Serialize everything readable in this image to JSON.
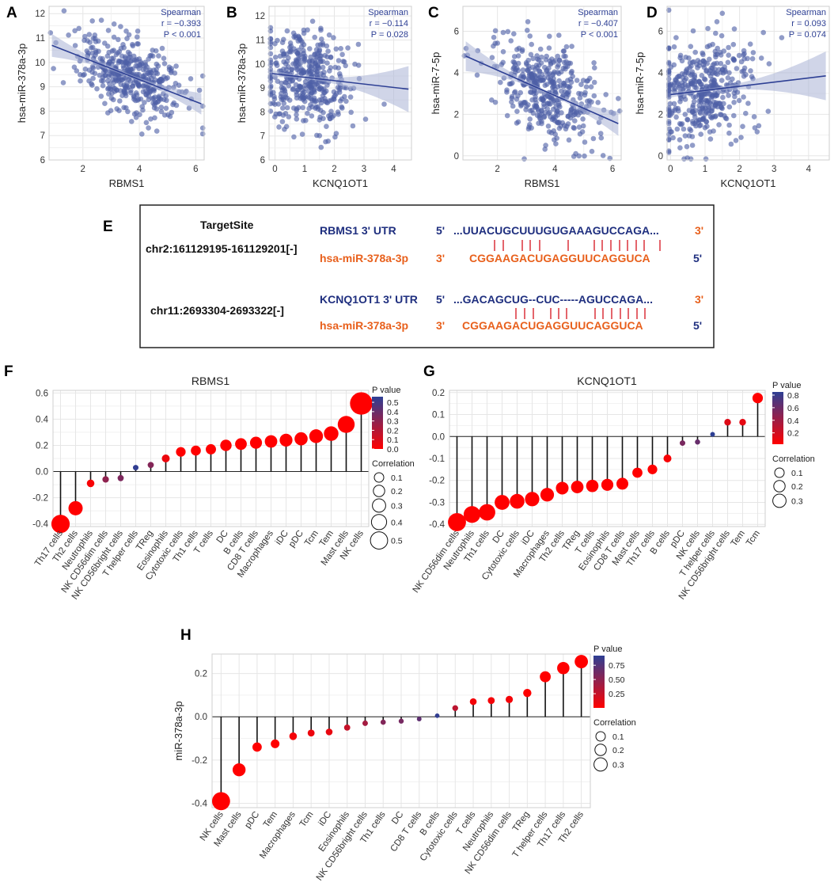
{
  "colors": {
    "scatter_point": "#4d5fa6",
    "reg_line": "#2d3f94",
    "ci_band": "#a9b3d6",
    "stat_text": "#2d3f94",
    "grid": "#e6e6e6",
    "utr_blue": "#1f2f7f",
    "mirna_orange": "#e8601c",
    "match_red": "#d9232d",
    "p_high": "#2d3f94",
    "p_low": "#ff0000"
  },
  "labels": {
    "panel_letters": [
      "A",
      "B",
      "C",
      "D",
      "E",
      "F",
      "G",
      "H"
    ],
    "spearman": "Spearman",
    "p_value_title": "P value",
    "correlation_title": "Correlation"
  },
  "chart_data": [
    {
      "id": "A",
      "type": "scatter",
      "xlabel": "RBMS1",
      "ylabel": "hsa-miR-378a-3p",
      "xlim": [
        0.8,
        6.3
      ],
      "ylim": [
        6,
        12.3
      ],
      "xticks": [
        2,
        4,
        6
      ],
      "yticks": [
        6,
        7,
        8,
        9,
        10,
        11,
        12
      ],
      "stats": {
        "method": "Spearman",
        "r": "r = −0.393",
        "p": "P < 0.001"
      },
      "regression": {
        "x": [
          0.9,
          6.2
        ],
        "y": [
          10.7,
          8.3
        ]
      },
      "n_points": 420,
      "x_center": 3.6,
      "x_sd": 0.95,
      "y_noise": 0.8,
      "seed": 11
    },
    {
      "id": "B",
      "type": "scatter",
      "xlabel": "KCNQ1OT1",
      "ylabel": "hsa-miR-378a-3p",
      "xlim": [
        -0.2,
        4.6
      ],
      "ylim": [
        6,
        12.4
      ],
      "xticks": [
        0,
        1,
        2,
        3,
        4
      ],
      "yticks": [
        6,
        7,
        8,
        9,
        10,
        11,
        12
      ],
      "stats": {
        "method": "Spearman",
        "r": "r = −0.114",
        "p": "P = 0.028"
      },
      "regression": {
        "x": [
          -0.1,
          4.5
        ],
        "y": [
          9.6,
          8.95
        ]
      },
      "n_points": 420,
      "x_center": 1.0,
      "x_sd": 0.75,
      "y_noise": 1.05,
      "seed": 23
    },
    {
      "id": "C",
      "type": "scatter",
      "xlabel": "RBMS1",
      "ylabel": "hsa-miR-7-5p",
      "xlim": [
        0.8,
        6.3
      ],
      "ylim": [
        -0.2,
        7.2
      ],
      "xticks": [
        2,
        4,
        6
      ],
      "yticks": [
        0,
        2,
        4,
        6
      ],
      "stats": {
        "method": "Spearman",
        "r": "r = −0.407",
        "p": "P < 0.001"
      },
      "regression": {
        "x": [
          0.9,
          6.2
        ],
        "y": [
          4.8,
          1.55
        ]
      },
      "n_points": 420,
      "x_center": 3.7,
      "x_sd": 0.95,
      "y_noise": 1.2,
      "seed": 37
    },
    {
      "id": "D",
      "type": "scatter",
      "xlabel": "KCNQ1OT1",
      "ylabel": "hsa-miR-7-5p",
      "xlim": [
        -0.1,
        4.6
      ],
      "ylim": [
        -0.2,
        7.2
      ],
      "xticks": [
        0,
        1,
        2,
        3,
        4
      ],
      "yticks": [
        0,
        2,
        4,
        6
      ],
      "stats": {
        "method": "Spearman",
        "r": "r = 0.093",
        "p": "P = 0.074"
      },
      "regression": {
        "x": [
          0,
          4.5
        ],
        "y": [
          2.95,
          3.85
        ]
      },
      "n_points": 420,
      "x_center": 1.0,
      "x_sd": 0.75,
      "y_noise": 1.3,
      "seed": 53
    },
    {
      "id": "F",
      "type": "lollipop",
      "title": "RBMS1",
      "ylabel": "",
      "ylim": [
        -0.42,
        0.62
      ],
      "yticks": [
        -0.4,
        -0.2,
        0.0,
        0.2,
        0.4,
        0.6
      ],
      "ytick_labels": [
        "-0.4",
        "-0.2",
        "0.0",
        "0.2",
        "0.4",
        "0.6"
      ],
      "categories": [
        "Th17 cells",
        "Th2 cells",
        "Neutrophils",
        "NK CD56dim cells",
        "NK CD56bright cells",
        "T helper cells",
        "TReg",
        "Eosinophils",
        "Cytotoxic cells",
        "Th1 cells",
        "T cells",
        "DC",
        "B cells",
        "CD8 T cells",
        "Macrophages",
        "iDC",
        "pDC",
        "Tcm",
        "Tem",
        "Mast cells",
        "NK cells"
      ],
      "values": [
        -0.4,
        -0.28,
        -0.09,
        -0.06,
        -0.05,
        0.03,
        0.05,
        0.1,
        0.15,
        0.16,
        0.17,
        0.2,
        0.21,
        0.22,
        0.23,
        0.24,
        0.25,
        0.27,
        0.29,
        0.36,
        0.52
      ],
      "pvalues": [
        0.0,
        0.0,
        0.02,
        0.3,
        0.35,
        0.55,
        0.33,
        0.05,
        0.0,
        0.0,
        0.0,
        0.0,
        0.0,
        0.0,
        0.0,
        0.0,
        0.0,
        0.0,
        0.0,
        0.0,
        0.0
      ],
      "legend_p": {
        "min": 0.0,
        "max": 0.56,
        "ticks": [
          "0.5",
          "0.4",
          "0.3",
          "0.2",
          "0.1",
          "0.0"
        ],
        "tick_values": [
          0.5,
          0.4,
          0.3,
          0.2,
          0.1,
          0.0
        ]
      },
      "legend_size": {
        "labels": [
          "0.1",
          "0.2",
          "0.3",
          "0.4",
          "0.5"
        ],
        "values": [
          0.1,
          0.2,
          0.3,
          0.4,
          0.5
        ]
      }
    },
    {
      "id": "G",
      "type": "lollipop",
      "title": "KCNQ1OT1",
      "ylabel": "",
      "ylim": [
        -0.41,
        0.21
      ],
      "yticks": [
        -0.4,
        -0.3,
        -0.2,
        -0.1,
        0.0,
        0.1,
        0.2
      ],
      "ytick_labels": [
        "-0.4",
        "-0.3",
        "-0.2",
        "-0.1",
        "0.0",
        "0.1",
        "0.2"
      ],
      "categories": [
        "NK CD56dim cells",
        "Neutrophils",
        "Th1 cells",
        "DC",
        "Cytotoxic cells",
        "iDC",
        "Macrophages",
        "Th2 cells",
        "TReg",
        "T cells",
        "Eosinophils",
        "CD8 T cells",
        "Mast cells",
        "Th17 cells",
        "B cells",
        "pDC",
        "NK cells",
        "T helper cells",
        "NK CD56bright cells",
        "Tem",
        "Tcm"
      ],
      "values": [
        -0.39,
        -0.355,
        -0.345,
        -0.3,
        -0.295,
        -0.285,
        -0.265,
        -0.235,
        -0.23,
        -0.225,
        -0.22,
        -0.215,
        -0.165,
        -0.15,
        -0.1,
        -0.03,
        -0.025,
        0.01,
        0.065,
        0.065,
        0.175
      ],
      "pvalues": [
        0.0,
        0.0,
        0.0,
        0.0,
        0.0,
        0.0,
        0.0,
        0.0,
        0.0,
        0.0,
        0.0,
        0.0,
        0.0,
        0.0,
        0.05,
        0.55,
        0.62,
        0.85,
        0.15,
        0.12,
        0.0
      ],
      "legend_p": {
        "min": 0.02,
        "max": 0.85,
        "ticks": [
          "0.8",
          "0.6",
          "0.4",
          "0.2"
        ],
        "tick_values": [
          0.8,
          0.6,
          0.4,
          0.2
        ]
      },
      "legend_size": {
        "labels": [
          "0.1",
          "0.2",
          "0.3"
        ],
        "values": [
          0.1,
          0.2,
          0.3
        ]
      }
    },
    {
      "id": "H",
      "type": "lollipop",
      "title": "",
      "ylabel": "miR-378a-3p",
      "ylim": [
        -0.42,
        0.29
      ],
      "yticks": [
        -0.4,
        -0.2,
        0.0,
        0.2
      ],
      "ytick_labels": [
        "-0.4",
        "-0.2",
        "0.0",
        "0.2"
      ],
      "categories": [
        "NK cells",
        "Mast cells",
        "pDC",
        "Tem",
        "Macrophages",
        "Tcm",
        "iDC",
        "Eosinophils",
        "NK CD56bright cells",
        "Th1 cells",
        "DC",
        "CD8 T cells",
        "B cells",
        "Cytotoxic cells",
        "T cells",
        "Neutrophils",
        "NK CD56dim cells",
        "TReg",
        "T helper cells",
        "Th17 cells",
        "Th2 cells"
      ],
      "values": [
        -0.39,
        -0.245,
        -0.14,
        -0.125,
        -0.09,
        -0.075,
        -0.07,
        -0.05,
        -0.03,
        -0.025,
        -0.02,
        -0.01,
        0.005,
        0.04,
        0.07,
        0.075,
        0.08,
        0.11,
        0.185,
        0.225,
        0.255
      ],
      "pvalues": [
        0.0,
        0.0,
        0.0,
        0.0,
        0.05,
        0.08,
        0.1,
        0.25,
        0.4,
        0.55,
        0.6,
        0.7,
        0.9,
        0.3,
        0.05,
        0.05,
        0.05,
        0.0,
        0.0,
        0.0,
        0.0
      ],
      "legend_p": {
        "min": 0.0,
        "max": 0.92,
        "ticks": [
          "0.75",
          "0.50",
          "0.25"
        ],
        "tick_values": [
          0.75,
          0.5,
          0.25
        ]
      },
      "legend_size": {
        "labels": [
          "0.1",
          "0.2",
          "0.3"
        ],
        "values": [
          0.1,
          0.2,
          0.3
        ]
      }
    }
  ],
  "target_site": {
    "header": "TargetSite",
    "rows": [
      {
        "coord": "chr2:161129195-161129201[-]",
        "utr_label": "RBMS1  3'  UTR",
        "utr_five": "5'",
        "utr_seq": "...UUACUGCUUUGUGAAAGUCCAGA...",
        "utr_three": "3'",
        "pairs": "|  |   | |     |     | | | | | |  |",
        "mir_label": "hsa-miR-378a-3p",
        "mir_three": "3'",
        "mir_seq": "CGGAAGACUGAGGUUCAGGUCA",
        "mir_five": "5'"
      },
      {
        "coord": "chr11:2693304-2693322[-]",
        "utr_label": "KCNQ1OT1 3' UTR",
        "utr_five": "5'",
        "utr_seq": "...GACAGCUG--CUC-----AGUCCAGA...",
        "utr_three": "3'",
        "pairs": "| | |   | | |     | | | | | | |",
        "mir_label": "hsa-miR-378a-3p",
        "mir_three": "3'",
        "mir_seq": "CGGAAGACUGAGGUUCAGGUCA",
        "mir_five": "5'"
      }
    ]
  }
}
